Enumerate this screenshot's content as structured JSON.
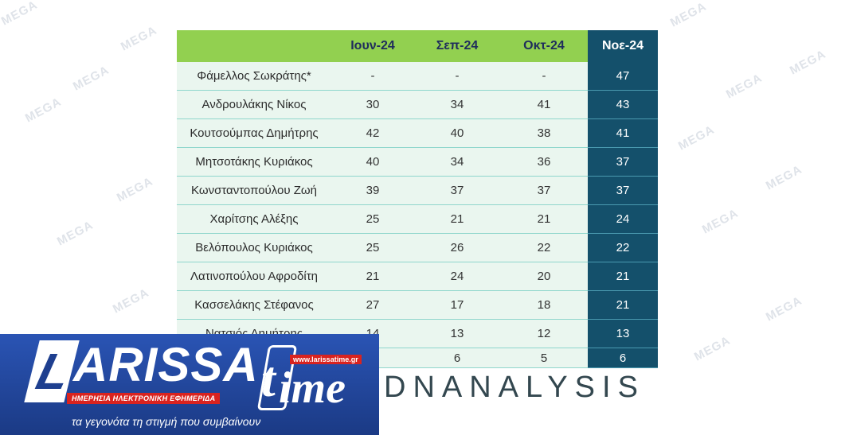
{
  "watermark_text": "MEGA",
  "table": {
    "columns": [
      "",
      "Ιουν-24",
      "Σεπ-24",
      "Οκτ-24",
      "Νοε-24"
    ],
    "rows": [
      {
        "name": "Φάμελλος Σωκράτης*",
        "values": [
          "-",
          "-",
          "-",
          "47"
        ]
      },
      {
        "name": "Ανδρουλάκης Νίκος",
        "values": [
          "30",
          "34",
          "41",
          "43"
        ]
      },
      {
        "name": "Κουτσούμπας Δημήτρης",
        "values": [
          "42",
          "40",
          "38",
          "41"
        ]
      },
      {
        "name": "Μητσοτάκης Κυριάκος",
        "values": [
          "40",
          "34",
          "36",
          "37"
        ]
      },
      {
        "name": "Κωνσταντοπούλου Ζωή",
        "values": [
          "39",
          "37",
          "37",
          "37"
        ]
      },
      {
        "name": "Χαρίτσης Αλέξης",
        "values": [
          "25",
          "21",
          "21",
          "24"
        ]
      },
      {
        "name": "Βελόπουλος Κυριάκος",
        "values": [
          "25",
          "26",
          "22",
          "22"
        ]
      },
      {
        "name": "Λατινοπούλου Αφροδίτη",
        "values": [
          "21",
          "24",
          "20",
          "21"
        ]
      },
      {
        "name": "Κασσελάκης Στέφανος",
        "values": [
          "27",
          "17",
          "18",
          "21"
        ]
      },
      {
        "name": "Νατσιός Δημήτρης",
        "values": [
          "14",
          "13",
          "12",
          "13"
        ]
      },
      {
        "name": "",
        "values": [
          "",
          "6",
          "5",
          "6"
        ]
      }
    ],
    "colors": {
      "header_green": "#92d050",
      "highlight_navy": "#14506b",
      "row_bg": "#eaf6ef"
    }
  },
  "brand": {
    "text": "DNANALYSIS"
  },
  "logo": {
    "l_letter": "L",
    "name_part": "ARISSA",
    "time_t": "t",
    "time_rest": "ime",
    "url": "www.larissatime.gr",
    "subtitle": "ΗΜΕΡΗΣΙΑ ΗΛΕΚΤΡΟΝΙΚΗ ΕΦΗΜΕΡΙΔΑ",
    "tagline": "τα γεγονότα τη στιγμή που συμβαίνουν"
  }
}
